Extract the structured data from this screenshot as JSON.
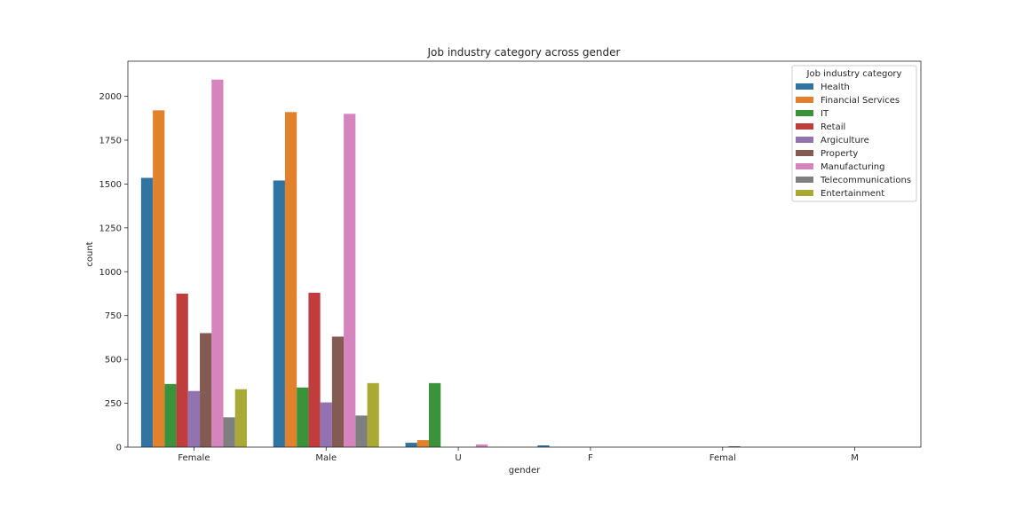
{
  "chart_data": {
    "type": "bar",
    "title": "Job industry category across gender",
    "xlabel": "gender",
    "ylabel": "count",
    "categories": [
      "Female",
      "Male",
      "U",
      "F",
      "Femal",
      "M"
    ],
    "ylim": [
      0,
      2200
    ],
    "yticks": [
      0,
      250,
      500,
      750,
      1000,
      1250,
      1500,
      1750,
      2000
    ],
    "grid": false,
    "legend": {
      "title": "Job industry category",
      "placement": "top-right"
    },
    "series": [
      {
        "name": "Health",
        "color": "#3274a1",
        "values": [
          1535,
          1520,
          25,
          10,
          0,
          0
        ]
      },
      {
        "name": "Financial Services",
        "color": "#e1812c",
        "values": [
          1920,
          1910,
          40,
          0,
          0,
          0
        ]
      },
      {
        "name": "IT",
        "color": "#3a923a",
        "values": [
          360,
          340,
          365,
          0,
          0,
          0
        ]
      },
      {
        "name": "Retail",
        "color": "#c03d3e",
        "values": [
          875,
          880,
          0,
          0,
          0,
          0
        ]
      },
      {
        "name": "Argiculture",
        "color": "#9372b2",
        "values": [
          320,
          255,
          0,
          0,
          0,
          0
        ]
      },
      {
        "name": "Property",
        "color": "#845b53",
        "values": [
          650,
          630,
          0,
          0,
          5,
          0
        ]
      },
      {
        "name": "Manufacturing",
        "color": "#d684bd",
        "values": [
          2095,
          1900,
          15,
          0,
          0,
          0
        ]
      },
      {
        "name": "Telecommunications",
        "color": "#7f7f7f",
        "values": [
          170,
          180,
          0,
          0,
          0,
          0
        ]
      },
      {
        "name": "Entertainment",
        "color": "#a9aa35",
        "values": [
          330,
          365,
          0,
          0,
          0,
          0
        ]
      }
    ]
  }
}
